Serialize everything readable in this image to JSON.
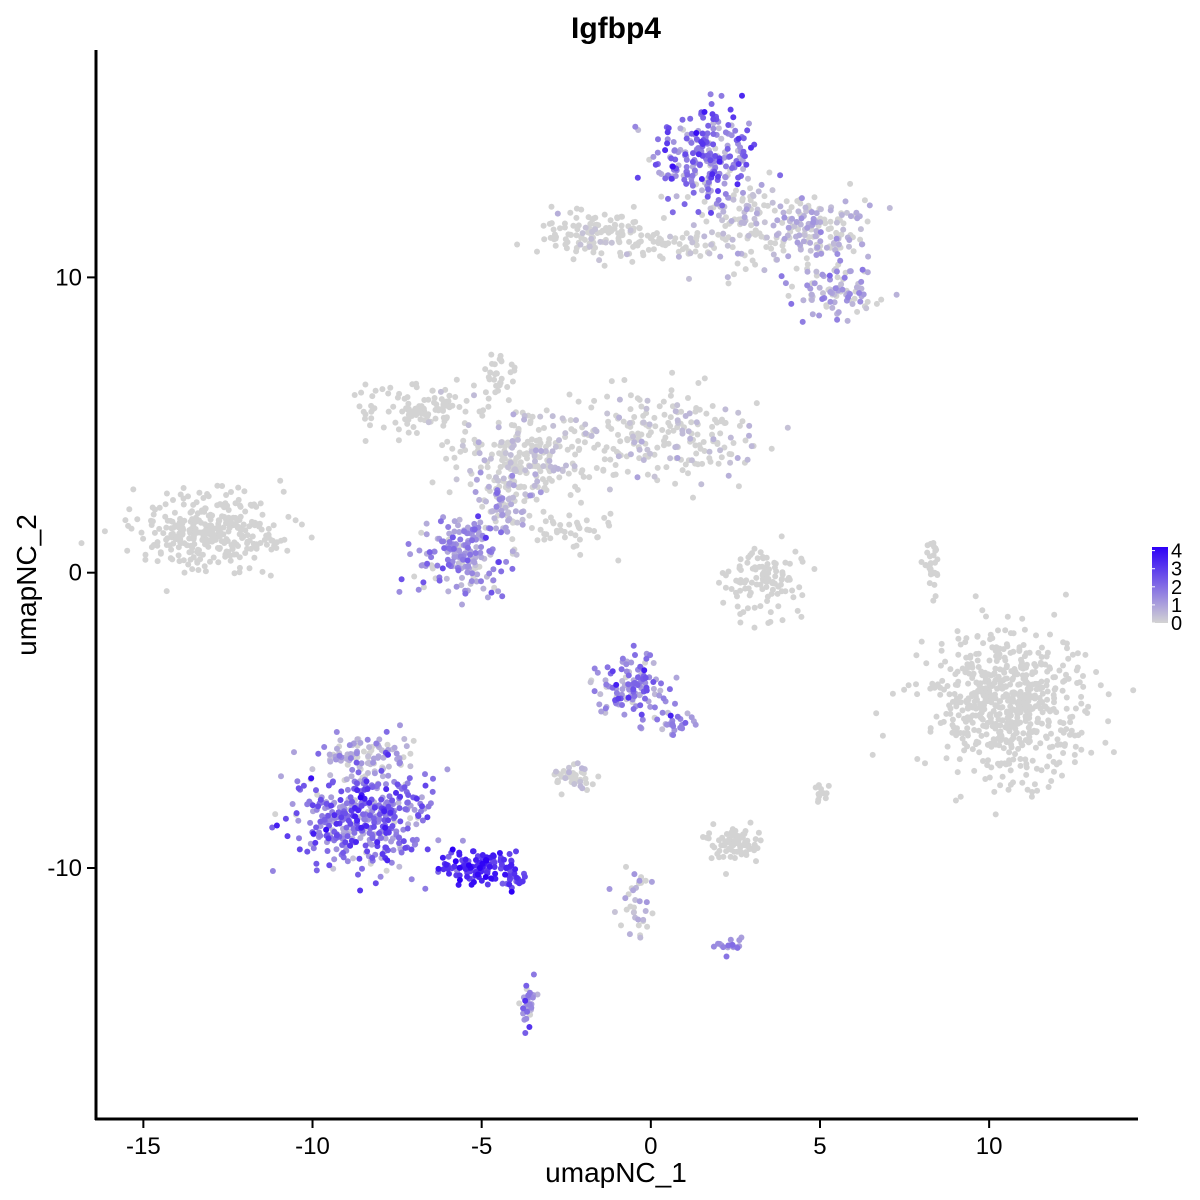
{
  "chart_data": {
    "type": "scatter",
    "title": "Igfbp4",
    "xlabel": "umapNC_1",
    "ylabel": "umapNC_2",
    "xlim": [
      -16.4,
      14.4
    ],
    "ylim": [
      -18.5,
      17.7
    ],
    "x_ticks": [
      -15,
      -10,
      -5,
      0,
      5,
      10
    ],
    "y_ticks": [
      -10,
      0,
      10
    ],
    "grid": false,
    "legend": {
      "placement": "right",
      "type": "colorbar",
      "ticks": [
        0,
        1,
        2,
        3,
        4
      ],
      "min": 0,
      "max": 4.2
    },
    "color_low": "#d3d3d3",
    "color_high": "#2d00f7",
    "point_size": 3,
    "clusters": [
      {
        "name": "top_right_head",
        "cx": 1.6,
        "cy": 14.1,
        "sx": 1.0,
        "sy": 1.1,
        "n": 220,
        "expr_mean": 1.8,
        "expr_sd": 0.9
      },
      {
        "name": "top_right_arm_right",
        "cx": 4.9,
        "cy": 11.6,
        "sx": 0.9,
        "sy": 0.7,
        "n": 160,
        "expr_mean": 0.3,
        "expr_sd": 0.5
      },
      {
        "name": "top_right_tail",
        "cx": 5.4,
        "cy": 9.5,
        "sx": 0.8,
        "sy": 0.6,
        "n": 90,
        "expr_mean": 0.7,
        "expr_sd": 0.6
      },
      {
        "name": "top_right_mid",
        "cx": 2.8,
        "cy": 11.8,
        "sx": 1.0,
        "sy": 1.2,
        "n": 120,
        "expr_mean": 0.2,
        "expr_sd": 0.4
      },
      {
        "name": "top_left_strip",
        "cx": -1.6,
        "cy": 11.5,
        "sx": 1.2,
        "sy": 0.5,
        "n": 130,
        "expr_mean": 0.05,
        "expr_sd": 0.2
      },
      {
        "name": "top_bridge",
        "cx": 0.8,
        "cy": 11.1,
        "sx": 1.0,
        "sy": 0.3,
        "n": 50,
        "expr_mean": 0.05,
        "expr_sd": 0.2
      },
      {
        "name": "mid_left_arm",
        "cx": -6.8,
        "cy": 5.6,
        "sx": 1.0,
        "sy": 0.6,
        "n": 110,
        "expr_mean": 0.0,
        "expr_sd": 0.15
      },
      {
        "name": "mid_center",
        "cx": -3.7,
        "cy": 4.0,
        "sx": 1.3,
        "sy": 0.9,
        "n": 230,
        "expr_mean": 0.1,
        "expr_sd": 0.3
      },
      {
        "name": "mid_right_arm",
        "cx": 0.5,
        "cy": 4.7,
        "sx": 1.8,
        "sy": 0.9,
        "n": 210,
        "expr_mean": 0.1,
        "expr_sd": 0.3
      },
      {
        "name": "mid_upper_spur",
        "cx": -4.5,
        "cy": 6.8,
        "sx": 0.3,
        "sy": 0.6,
        "n": 30,
        "expr_mean": 0.0,
        "expr_sd": 0.1
      },
      {
        "name": "mid_lower_blob",
        "cx": -5.5,
        "cy": 0.6,
        "sx": 0.9,
        "sy": 0.9,
        "n": 180,
        "expr_mean": 1.2,
        "expr_sd": 0.7
      },
      {
        "name": "mid_stem",
        "cx": -4.3,
        "cy": 2.3,
        "sx": 0.6,
        "sy": 0.9,
        "n": 90,
        "expr_mean": 0.4,
        "expr_sd": 0.5
      },
      {
        "name": "mid_diag_streak",
        "cx": -2.3,
        "cy": 1.4,
        "sx": 0.7,
        "sy": 0.4,
        "n": 40,
        "expr_mean": 0.0,
        "expr_sd": 0.1
      },
      {
        "name": "far_left",
        "cx": -13.0,
        "cy": 1.3,
        "sx": 1.4,
        "sy": 0.8,
        "n": 320,
        "expr_mean": 0.0,
        "expr_sd": 0.12
      },
      {
        "name": "center_arc",
        "cx": 3.3,
        "cy": -0.2,
        "sx": 0.8,
        "sy": 0.7,
        "n": 110,
        "expr_mean": 0.0,
        "expr_sd": 0.1
      },
      {
        "name": "right_streak",
        "cx": 8.3,
        "cy": 0.3,
        "sx": 0.15,
        "sy": 0.6,
        "n": 30,
        "expr_mean": 0.0,
        "expr_sd": 0.05
      },
      {
        "name": "far_right",
        "cx": 10.6,
        "cy": -4.4,
        "sx": 1.4,
        "sy": 1.5,
        "n": 620,
        "expr_mean": 0.0,
        "expr_sd": 0.08
      },
      {
        "name": "lower_left_big",
        "cx": -8.5,
        "cy": -8.3,
        "sx": 1.2,
        "sy": 1.1,
        "n": 420,
        "expr_mean": 1.9,
        "expr_sd": 0.9
      },
      {
        "name": "lower_left_top",
        "cx": -8.5,
        "cy": -6.2,
        "sx": 0.8,
        "sy": 0.5,
        "n": 90,
        "expr_mean": 0.6,
        "expr_sd": 0.6
      },
      {
        "name": "lower_left_tail",
        "cx": -5.2,
        "cy": -9.9,
        "sx": 0.9,
        "sy": 0.35,
        "n": 110,
        "expr_mean": 3.3,
        "expr_sd": 0.6
      },
      {
        "name": "lower_left_tip",
        "cx": -4.0,
        "cy": -10.4,
        "sx": 0.25,
        "sy": 0.2,
        "n": 20,
        "expr_mean": 3.0,
        "expr_sd": 0.5
      },
      {
        "name": "lower_drip",
        "cx": -3.6,
        "cy": -14.6,
        "sx": 0.15,
        "sy": 0.5,
        "n": 30,
        "expr_mean": 1.5,
        "expr_sd": 1.0
      },
      {
        "name": "lower_mid_top",
        "cx": -0.6,
        "cy": -3.9,
        "sx": 0.6,
        "sy": 0.6,
        "n": 120,
        "expr_mean": 1.4,
        "expr_sd": 0.8
      },
      {
        "name": "lower_mid_arm",
        "cx": 0.8,
        "cy": -4.9,
        "sx": 0.35,
        "sy": 0.4,
        "n": 25,
        "expr_mean": 1.5,
        "expr_sd": 0.7
      },
      {
        "name": "lower_mid_small",
        "cx": -2.4,
        "cy": -6.9,
        "sx": 0.4,
        "sy": 0.25,
        "n": 40,
        "expr_mean": 0.1,
        "expr_sd": 0.3
      },
      {
        "name": "lower_center_blob",
        "cx": 2.5,
        "cy": -9.2,
        "sx": 0.5,
        "sy": 0.4,
        "n": 80,
        "expr_mean": 0.0,
        "expr_sd": 0.1
      },
      {
        "name": "lower_center_streak",
        "cx": -0.4,
        "cy": -11.3,
        "sx": 0.3,
        "sy": 0.8,
        "n": 35,
        "expr_mean": 0.4,
        "expr_sd": 0.5
      },
      {
        "name": "lower_right_speck",
        "cx": 2.3,
        "cy": -12.6,
        "sx": 0.25,
        "sy": 0.2,
        "n": 18,
        "expr_mean": 1.3,
        "expr_sd": 0.5
      },
      {
        "name": "small_right_dot",
        "cx": 5.0,
        "cy": -7.5,
        "sx": 0.15,
        "sy": 0.2,
        "n": 12,
        "expr_mean": 0.0,
        "expr_sd": 0.05
      }
    ]
  }
}
